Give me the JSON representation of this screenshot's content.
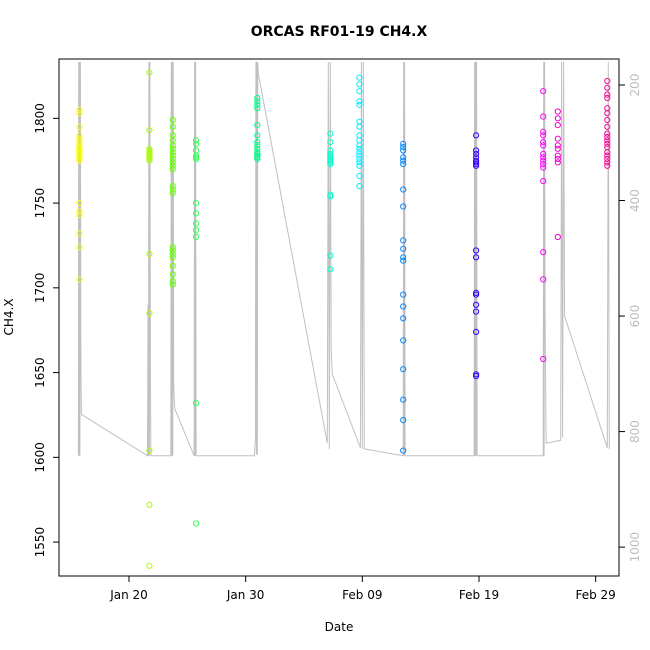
{
  "chart_data": {
    "type": "scatter",
    "title": "ORCAS RF01-19 CH4.X",
    "xlabel": "Date",
    "ylabel": "CH4.X",
    "ylabel_right": "",
    "xlim": [
      "2016-01-14",
      "2016-03-02"
    ],
    "ylim": [
      1530,
      1835
    ],
    "ylim_right": [
      1050,
      155
    ],
    "x_ticks": [
      {
        "date": "2016-01-20",
        "label": "Jan 20"
      },
      {
        "date": "2016-01-30",
        "label": "Jan 30"
      },
      {
        "date": "2016-02-09",
        "label": "Feb 09"
      },
      {
        "date": "2016-02-19",
        "label": "Feb 19"
      },
      {
        "date": "2016-02-29",
        "label": "Feb 29"
      }
    ],
    "y_ticks": [
      1550,
      1600,
      1650,
      1700,
      1750,
      1800
    ],
    "y_ticks_right": [
      200,
      400,
      600,
      800,
      1000
    ],
    "grid": false,
    "legend": "none",
    "series": [
      {
        "date": "2016-01-15T18:00",
        "color": "#FFFF00",
        "values": [
          1805,
          1803,
          1795,
          1790,
          1788,
          1786,
          1784,
          1783,
          1782,
          1781,
          1780,
          1779,
          1778,
          1777,
          1776,
          1775,
          1750,
          1745,
          1743,
          1732,
          1724,
          1705
        ]
      },
      {
        "date": "2016-01-21T18:00",
        "color": "#AAFF00",
        "values": [
          1827,
          1793,
          1782,
          1781,
          1780,
          1779,
          1778,
          1777,
          1776,
          1775,
          1720,
          1685,
          1604,
          1572,
          1536
        ]
      },
      {
        "date": "2016-01-23T18:00",
        "color": "#66FF00",
        "values": [
          1799,
          1795,
          1790,
          1787,
          1784,
          1782,
          1780,
          1778,
          1776,
          1774,
          1772,
          1770,
          1760,
          1758,
          1756,
          1724,
          1722,
          1720,
          1718,
          1713,
          1708,
          1704,
          1702
        ]
      },
      {
        "date": "2016-01-25T18:00",
        "color": "#33FF55",
        "values": [
          1787,
          1785,
          1781,
          1778,
          1777,
          1776,
          1750,
          1744,
          1738,
          1734,
          1730,
          1632,
          1561
        ]
      },
      {
        "date": "2016-01-31T00:00",
        "color": "#00FF88",
        "values": [
          1812,
          1810,
          1808,
          1806,
          1796,
          1790,
          1786,
          1784,
          1782,
          1780,
          1779,
          1778,
          1777,
          1776
        ]
      },
      {
        "date": "2016-02-06T06:00",
        "color": "#00FFCC",
        "values": [
          1791,
          1786,
          1781,
          1779,
          1778,
          1777,
          1776,
          1775,
          1774,
          1773,
          1755,
          1754,
          1719,
          1711
        ]
      },
      {
        "date": "2016-02-08T18:00",
        "color": "#00EEFF",
        "values": [
          1824,
          1820,
          1816,
          1810,
          1808,
          1798,
          1795,
          1790,
          1787,
          1784,
          1782,
          1780,
          1778,
          1776,
          1774,
          1772,
          1766,
          1760
        ]
      },
      {
        "date": "2016-02-12T12:00",
        "color": "#0088FF",
        "values": [
          1785,
          1783,
          1781,
          1777,
          1775,
          1773,
          1758,
          1748,
          1728,
          1723,
          1718,
          1716,
          1696,
          1689,
          1682,
          1669,
          1652,
          1634,
          1622,
          1604
        ]
      },
      {
        "date": "2016-02-18T18:00",
        "color": "#3300FF",
        "values": [
          1790,
          1781,
          1779,
          1777,
          1775,
          1774,
          1773,
          1772,
          1722,
          1718,
          1697,
          1696,
          1690,
          1686,
          1674,
          1649,
          1648
        ]
      },
      {
        "date": "2016-02-24T12:00",
        "color": "#FF00FF",
        "values": [
          1816,
          1801,
          1792,
          1790,
          1786,
          1784,
          1779,
          1777,
          1775,
          1773,
          1771,
          1763,
          1721,
          1705,
          1658
        ]
      },
      {
        "date": "2016-02-25T18:00",
        "color": "#EE00CC",
        "values": [
          1804,
          1800,
          1796,
          1788,
          1784,
          1782,
          1778,
          1776,
          1774,
          1730
        ]
      },
      {
        "date": "2016-03-01T00:00",
        "color": "#FF0099",
        "values": [
          1822,
          1818,
          1814,
          1812,
          1806,
          1803,
          1799,
          1795,
          1791,
          1789,
          1787,
          1785,
          1783,
          1780,
          1778,
          1776,
          1774,
          1772
        ]
      }
    ],
    "altitude_trace": {
      "color": "#c0c0c0",
      "points": [
        [
          "2016-01-15T16:00",
          842
        ],
        [
          "2016-01-15T16:30",
          160
        ],
        [
          "2016-01-15T17:00",
          842
        ],
        [
          "2016-01-15T18:00",
          160
        ],
        [
          "2016-01-15T19:00",
          842
        ],
        [
          "2016-01-15T20:00",
          160
        ],
        [
          "2016-01-15T21:00",
          680
        ],
        [
          "2016-01-15T22:00",
          770
        ],
        [
          "2016-01-21T14:00",
          842
        ],
        [
          "2016-01-21T15:00",
          580
        ],
        [
          "2016-01-21T16:00",
          842
        ],
        [
          "2016-01-21T17:00",
          160
        ],
        [
          "2016-01-21T18:00",
          842
        ],
        [
          "2016-01-21T19:00",
          160
        ],
        [
          "2016-01-21T20:00",
          700
        ],
        [
          "2016-01-21T21:00",
          842
        ],
        [
          "2016-01-23T14:00",
          842
        ],
        [
          "2016-01-23T15:00",
          160
        ],
        [
          "2016-01-23T16:00",
          842
        ],
        [
          "2016-01-23T17:00",
          160
        ],
        [
          "2016-01-23T18:00",
          842
        ],
        [
          "2016-01-23T19:00",
          160
        ],
        [
          "2016-01-23T20:00",
          720
        ],
        [
          "2016-01-23T22:00",
          760
        ],
        [
          "2016-01-25T14:00",
          842
        ],
        [
          "2016-01-25T15:00",
          160
        ],
        [
          "2016-01-25T16:00",
          842
        ],
        [
          "2016-01-25T17:00",
          160
        ],
        [
          "2016-01-25T18:00",
          842
        ],
        [
          "2016-01-30T18:00",
          842
        ],
        [
          "2016-01-30T20:00",
          810
        ],
        [
          "2016-01-30T21:00",
          160
        ],
        [
          "2016-01-30T22:00",
          840
        ],
        [
          "2016-01-30T23:00",
          160
        ],
        [
          "2016-01-31T00:00",
          840
        ],
        [
          "2016-01-31T01:00",
          160
        ],
        [
          "2016-01-31T02:00",
          180
        ],
        [
          "2016-02-06T00:00",
          820
        ],
        [
          "2016-02-06T02:00",
          160
        ],
        [
          "2016-02-06T04:00",
          830
        ],
        [
          "2016-02-06T06:00",
          160
        ],
        [
          "2016-02-06T08:00",
          660
        ],
        [
          "2016-02-06T10:00",
          700
        ],
        [
          "2016-02-08T20:00",
          828
        ],
        [
          "2016-02-08T22:00",
          160
        ],
        [
          "2016-02-09T00:00",
          830
        ],
        [
          "2016-02-09T02:00",
          160
        ],
        [
          "2016-02-09T04:00",
          830
        ],
        [
          "2016-02-12T12:00",
          842
        ],
        [
          "2016-02-12T13:00",
          160
        ],
        [
          "2016-02-12T14:00",
          842
        ],
        [
          "2016-02-12T15:00",
          160
        ],
        [
          "2016-02-12T16:00",
          842
        ],
        [
          "2016-02-18T14:00",
          842
        ],
        [
          "2016-02-18T15:00",
          160
        ],
        [
          "2016-02-18T16:00",
          842
        ],
        [
          "2016-02-18T17:00",
          160
        ],
        [
          "2016-02-18T18:00",
          842
        ],
        [
          "2016-02-18T19:00",
          160
        ],
        [
          "2016-02-18T20:00",
          842
        ],
        [
          "2016-02-24T12:00",
          842
        ],
        [
          "2016-02-24T13:00",
          160
        ],
        [
          "2016-02-24T14:00",
          842
        ],
        [
          "2016-02-24T15:00",
          160
        ],
        [
          "2016-02-24T16:00",
          600
        ],
        [
          "2016-02-24T18:00",
          820
        ],
        [
          "2016-02-26T00:00",
          815
        ],
        [
          "2016-02-26T02:00",
          160
        ],
        [
          "2016-02-26T04:00",
          810
        ],
        [
          "2016-02-26T06:00",
          160
        ],
        [
          "2016-02-26T08:00",
          600
        ],
        [
          "2016-03-01T00:00",
          828
        ],
        [
          "2016-03-01T02:00",
          160
        ],
        [
          "2016-03-01T04:00",
          830
        ]
      ]
    }
  }
}
